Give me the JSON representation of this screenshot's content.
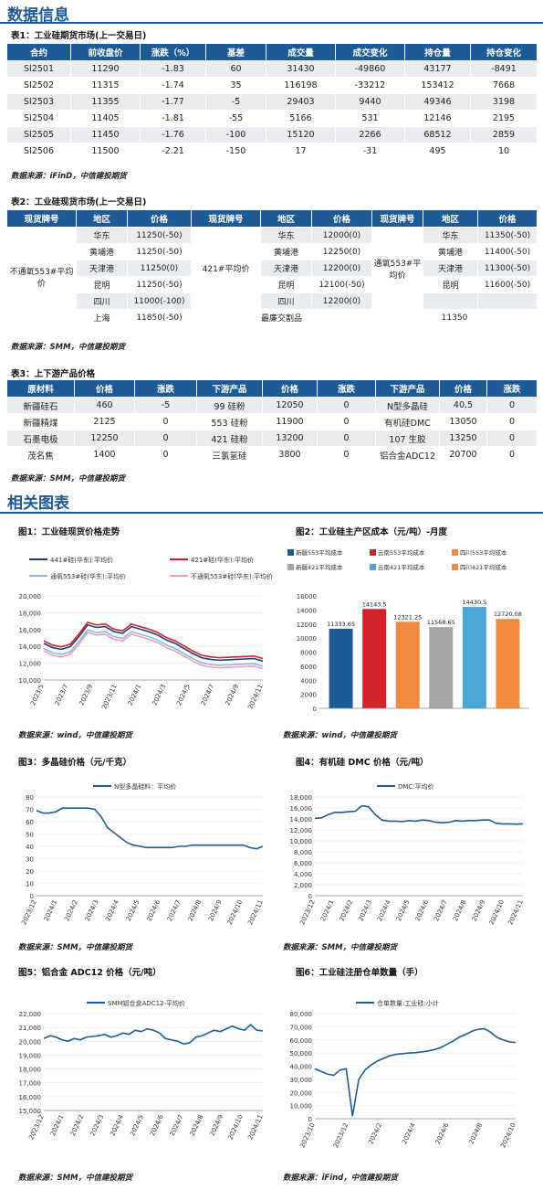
{
  "section1_title": "数据信息",
  "section2_title": "相关图表",
  "table1": {
    "caption": "表1：工业硅期货市场(上一交易日)",
    "headers": [
      "合约",
      "前收盘价",
      "涨跌（%）",
      "基差",
      "成交量",
      "成交变化",
      "持仓量",
      "持仓变化"
    ],
    "rows": [
      [
        "SI2501",
        "11290",
        "-1.83",
        "60",
        "31430",
        "-49860",
        "43177",
        "-8491"
      ],
      [
        "SI2502",
        "11315",
        "-1.74",
        "35",
        "116198",
        "-33212",
        "153412",
        "7668"
      ],
      [
        "SI2503",
        "11355",
        "-1.77",
        "-5",
        "29403",
        "9440",
        "49346",
        "3198"
      ],
      [
        "SI2504",
        "11405",
        "-1.81",
        "-55",
        "5166",
        "531",
        "12146",
        "2195"
      ],
      [
        "SI2505",
        "11450",
        "-1.76",
        "-100",
        "15120",
        "2266",
        "68512",
        "2859"
      ],
      [
        "SI2506",
        "11500",
        "-2.21",
        "-150",
        "17",
        "-31",
        "495",
        "10"
      ]
    ],
    "source": "数据来源：iFinD，中信建投期货"
  },
  "table2": {
    "caption": "表2：工业硅现货市场(上一交易日)",
    "headers": [
      "现货牌号",
      "地区",
      "价格",
      "现货牌号",
      "地区",
      "价格",
      "现货牌号",
      "地区",
      "价格"
    ],
    "grade1": "不通氧553#平均价",
    "grade2": "421#平均价",
    "grade3": "通氧553#平均价",
    "g1": [
      [
        "华东",
        "11250(-50)"
      ],
      [
        "黄埔港",
        "11250(-50)"
      ],
      [
        "天津港",
        "11250(0)"
      ],
      [
        "昆明",
        "11250(-50)"
      ],
      [
        "四川",
        "11000(-100)"
      ],
      [
        "上海",
        "11850(-50)"
      ]
    ],
    "g2": [
      [
        "华东",
        "12000(0)"
      ],
      [
        "黄埔港",
        "12250(0)"
      ],
      [
        "天津港",
        "12200(0)"
      ],
      [
        "昆明",
        "12100(-50)"
      ],
      [
        "四川",
        "12200(0)"
      ]
    ],
    "g3": [
      [
        "华东",
        "11350(-50)"
      ],
      [
        "黄埔港",
        "11400(-50)"
      ],
      [
        "天津港",
        "11300(-50)"
      ],
      [
        "昆明",
        "11600(-50)"
      ]
    ],
    "min_label": "最廉交割品",
    "min_value": "11350",
    "source": "数据来源：SMM，中信建投期货"
  },
  "table3": {
    "caption": "表3：上下游产品价格",
    "headers": [
      "原材料",
      "价格",
      "涨跌",
      "下游产品",
      "价格",
      "涨跌",
      "下游产品",
      "价格",
      "涨跌"
    ],
    "rows": [
      [
        "新疆硅石",
        "460",
        "-5",
        "99 硅粉",
        "12050",
        "0",
        "N型多晶硅",
        "40.5",
        "0"
      ],
      [
        "新疆精煤",
        "2125",
        "0",
        "553 硅粉",
        "11900",
        "0",
        "有机硅DMC",
        "13050",
        "0"
      ],
      [
        "石墨电极",
        "12250",
        "0",
        "421 硅粉",
        "13200",
        "0",
        "107 生胶",
        "13250",
        "0"
      ],
      [
        "茂名焦",
        "1400",
        "0",
        "三氯氢硅",
        "3800",
        "0",
        "铝合金ADC12",
        "20700",
        "0"
      ]
    ],
    "source": "数据来源：SMM，中信建投期货"
  },
  "colors": {
    "blue": "#1e5a96",
    "red": "#d0232a",
    "gray": "#a6a6a6",
    "ltblue": "#8fb6e0",
    "pink": "#e8a0b4",
    "teal": "#4aa7d6",
    "orange": "#f08a3c",
    "navy": "#1a3e7a"
  },
  "chart_data": [
    {
      "type": "line",
      "caption": "图1：工业硅现货价格走势",
      "source": "数据来源：wind，中信建投期货",
      "series": [
        {
          "name": "441#硅(华东):平均价",
          "color": "#1a3e7a"
        },
        {
          "name": "421#硅(华东):平均价",
          "color": "#d0232a"
        },
        {
          "name": "通氧553#硅(华东):平均价",
          "color": "#8fb6e0"
        },
        {
          "name": "不通氧553#硅(华东):平均价",
          "color": "#e8a0b4"
        }
      ],
      "ylim": [
        10000,
        20000
      ],
      "yticks": [
        "20,000",
        "18,000",
        "16,000",
        "14,000",
        "12,000",
        "10,000"
      ],
      "xticks": [
        "2023/5",
        "2023/7",
        "2023/9",
        "2023/11",
        "2024/1",
        "2024/3",
        "2024/5",
        "2024/7",
        "2024/9",
        "2024/11"
      ],
      "x": [
        0,
        4,
        8,
        12,
        16,
        20,
        24,
        28,
        32,
        36,
        40,
        44,
        48,
        52,
        56,
        60,
        64,
        68,
        72,
        76,
        80,
        84,
        88,
        92,
        96,
        100
      ],
      "base": [
        14000,
        13500,
        13300,
        13600,
        14800,
        16200,
        15900,
        16000,
        15400,
        15200,
        16000,
        15700,
        15400,
        15000,
        14400,
        14000,
        13400,
        12800,
        12300,
        12100,
        12000,
        12050,
        12100,
        12150,
        12200,
        11900
      ]
    },
    {
      "type": "bar",
      "caption": "图2：工业硅主产区成本（元/吨）-月度",
      "source": "数据来源：wind，中信建投期货",
      "categories": [
        "新疆553平均成本",
        "云南553平均成本",
        "四川553平均成本",
        "新疆421平均成本",
        "云南421平均成本",
        "四川421平均成本"
      ],
      "values": [
        11333.65,
        14143.5,
        12321.25,
        11568.65,
        14430.5,
        12720.08
      ],
      "labels": [
        "11333.65",
        "14143.5",
        "12321.25",
        "11568.65",
        "14430.5",
        "12720.08"
      ],
      "colors": [
        "#1e5a96",
        "#d0232a",
        "#f08a3c",
        "#a6a6a6",
        "#4aa7d6",
        "#f08a3c"
      ],
      "ylim": [
        0,
        16000
      ],
      "yticks": [
        "16000",
        "14000",
        "12000",
        "10000",
        "8000",
        "6000",
        "4000",
        "2000",
        "0"
      ]
    },
    {
      "type": "line",
      "caption": "图3：多晶硅价格（元/千克）",
      "source": "数据来源：SMM，中信建投期货",
      "series": [
        {
          "name": "N型多晶硅料：平均价",
          "color": "#1e5a96"
        }
      ],
      "ylim": [
        0,
        80
      ],
      "yticks": [
        "80",
        "70",
        "60",
        "50",
        "40",
        "30",
        "20",
        "10",
        "0"
      ],
      "xticks": [
        "2023/12",
        "2024/1",
        "2024/2",
        "2024/3",
        "2024/4",
        "2024/5",
        "2024/6",
        "2024/7",
        "2024/8",
        "2024/9",
        "2024/10",
        "2024/11"
      ],
      "values": [
        69,
        67,
        67,
        68,
        71,
        71,
        71,
        71,
        71,
        70,
        64,
        55,
        51,
        47,
        43,
        41,
        40,
        39,
        39,
        39,
        39,
        39,
        40,
        40,
        41,
        41,
        41,
        41,
        41,
        41,
        41,
        41,
        41,
        39,
        38,
        40
      ]
    },
    {
      "type": "line",
      "caption": "图4：有机硅 DMC 价格（元/吨）",
      "source": "数据来源：SMM，中信建投期货",
      "series": [
        {
          "name": "DMC:平均价",
          "color": "#1e5a96"
        }
      ],
      "ylim": [
        0,
        18000
      ],
      "yticks": [
        "18,000",
        "16,000",
        "14,000",
        "12,000",
        "10,000",
        "8,000",
        "6,000",
        "4,000",
        "2,000",
        "0"
      ],
      "xticks": [
        "2023/12",
        "2024/1",
        "2024/2",
        "2024/3",
        "2024/4",
        "2024/5",
        "2024/6",
        "2024/7",
        "2024/8",
        "2024/9",
        "2024/10",
        "2024/11"
      ],
      "values": [
        14100,
        14200,
        14800,
        15200,
        15200,
        15300,
        15400,
        16400,
        16200,
        14800,
        13800,
        13600,
        13600,
        13500,
        13700,
        13600,
        13800,
        13700,
        13400,
        13300,
        13400,
        13700,
        13600,
        13700,
        13700,
        13800,
        13800,
        13200,
        13100,
        13100,
        13050,
        13100
      ]
    },
    {
      "type": "line",
      "caption": "图5：铝合金 ADC12 价格（元/吨）",
      "source": "数据来源：SMM，中信建投期货",
      "series": [
        {
          "name": "SMM铝合金ADC12-平均价",
          "color": "#1e5a96"
        }
      ],
      "ylim": [
        15000,
        22000
      ],
      "yticks": [
        "22,000",
        "21,000",
        "20,000",
        "19,000",
        "18,000",
        "17,000",
        "16,000",
        "15,000"
      ],
      "xticks": [
        "2023/12",
        "2024/1",
        "2024/2",
        "2024/3",
        "2024/4",
        "2024/5",
        "2024/6",
        "2024/7",
        "2024/8",
        "2024/9",
        "2024/10",
        "2024/11"
      ],
      "values": [
        20200,
        20400,
        20300,
        20100,
        20000,
        20200,
        20100,
        20300,
        20350,
        20400,
        20500,
        20300,
        20400,
        20600,
        20500,
        20800,
        20700,
        20900,
        20800,
        20600,
        20200,
        20100,
        20000,
        19800,
        19900,
        20300,
        20400,
        20600,
        20800,
        20700,
        20900,
        21100,
        20900,
        20800,
        21200,
        20800,
        20750
      ]
    },
    {
      "type": "line",
      "caption": "图6：工业硅注册仓单数量（手）",
      "source": "数据来源：iFind，中信建投期货",
      "series": [
        {
          "name": "仓单数量:工业硅:小计",
          "color": "#1e5a96"
        }
      ],
      "ylim": [
        0,
        80000
      ],
      "yticks": [
        "80,000",
        "70,000",
        "60,000",
        "50,000",
        "40,000",
        "30,000",
        "20,000",
        "10,000",
        "0"
      ],
      "xticks": [
        "2023/10",
        "2023/12",
        "2024/2",
        "2024/4",
        "2024/6",
        "2024/8",
        "2024/10"
      ],
      "values": [
        38000,
        36000,
        34000,
        33000,
        37000,
        38000,
        2000,
        30000,
        37000,
        41000,
        44000,
        46000,
        48000,
        49000,
        49500,
        50000,
        50200,
        50800,
        51500,
        52500,
        54000,
        56500,
        59000,
        62000,
        64000,
        66500,
        68000,
        68500,
        66000,
        62000,
        60000,
        58500,
        58000
      ]
    }
  ]
}
